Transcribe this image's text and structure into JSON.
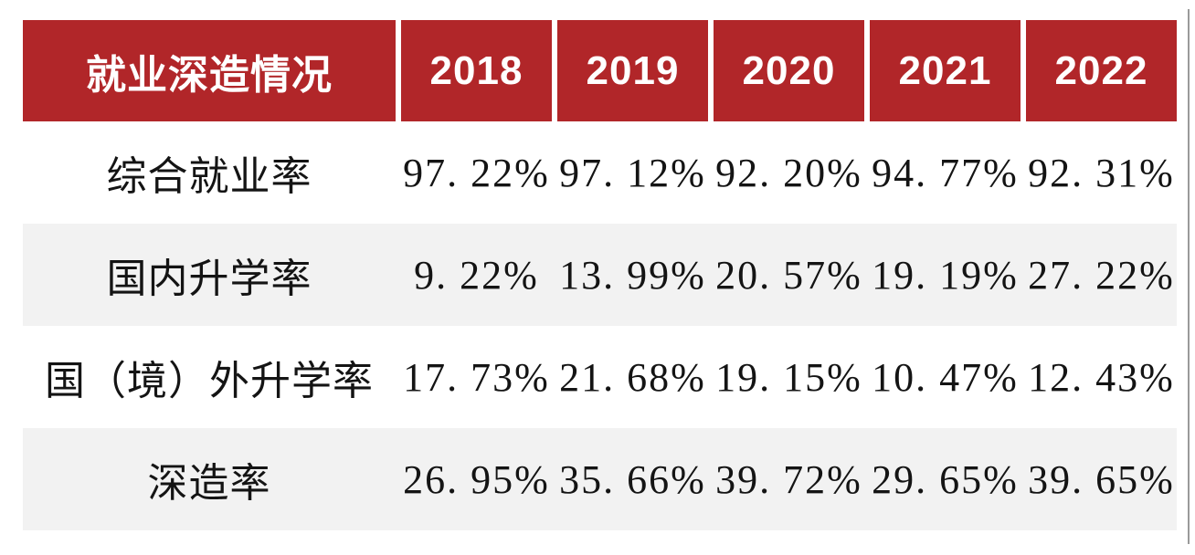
{
  "chart_data": {
    "type": "table",
    "title": "就业深造情况",
    "columns": [
      "2018",
      "2019",
      "2020",
      "2021",
      "2022"
    ],
    "rows": [
      {
        "label": "综合就业率",
        "values": [
          97.22,
          97.12,
          92.2,
          94.77,
          92.31
        ]
      },
      {
        "label": "国内升学率",
        "values": [
          9.22,
          13.99,
          20.57,
          19.19,
          27.22
        ]
      },
      {
        "label": "国（境）外升学率",
        "values": [
          17.73,
          21.68,
          19.15,
          10.47,
          12.43
        ]
      },
      {
        "label": "深造率",
        "values": [
          26.95,
          35.66,
          39.72,
          29.65,
          39.65
        ]
      }
    ],
    "unit": "%",
    "layout": {
      "striped_rows": true,
      "header_style": "red-banner"
    }
  },
  "table": {
    "header": {
      "title": "就业深造情况",
      "years": [
        "2018",
        "2019",
        "2020",
        "2021",
        "2022"
      ]
    },
    "rows": [
      {
        "label": "综合就业率",
        "values": [
          "97. 22%",
          "97. 12%",
          "92. 20%",
          "94. 77%",
          "92. 31%"
        ]
      },
      {
        "label": "国内升学率",
        "values": [
          "9. 22%",
          "13. 99%",
          "20. 57%",
          "19. 19%",
          "27. 22%"
        ]
      },
      {
        "label": "国（境）外升学率",
        "values": [
          "17. 73%",
          "21. 68%",
          "19. 15%",
          "10. 47%",
          "12. 43%"
        ]
      },
      {
        "label": "深造率",
        "values": [
          "26. 95%",
          "35. 66%",
          "39. 72%",
          "29. 65%",
          "39. 65%"
        ]
      }
    ]
  },
  "colors": {
    "header_bg": "#B12629",
    "header_text": "#FFFFFF",
    "row_alt_bg": "#F2F2F2",
    "body_text": "#141414"
  }
}
